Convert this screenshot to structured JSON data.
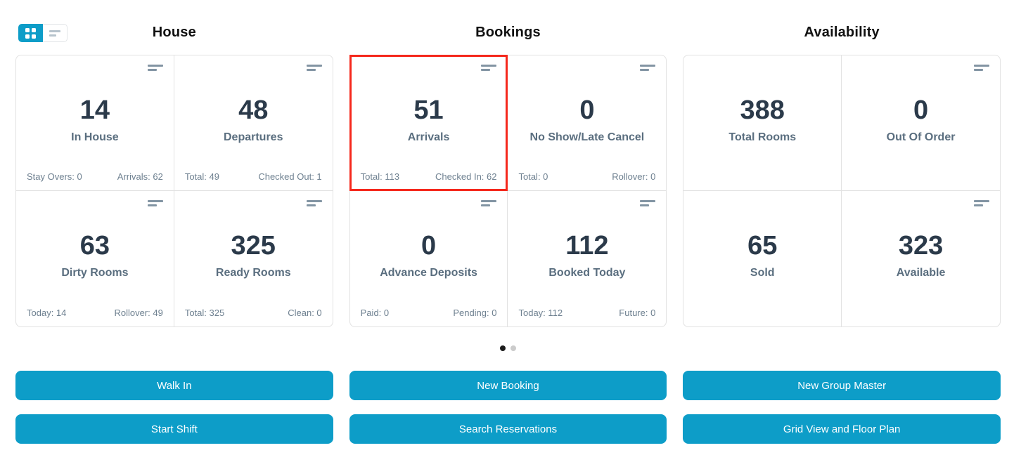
{
  "view_toggle": {
    "active_view": "grid",
    "grid_icon": "grid-view-icon",
    "list_icon": "list-view-icon"
  },
  "icons": {
    "card_menu": "align-left-lines-icon"
  },
  "colors": {
    "accent_blue": "#0d9dc8",
    "highlight_red": "#f5281c",
    "value_text": "#2b3a4a",
    "label_text": "#5a6e7f",
    "footer_text": "#6e8090",
    "card_border": "#e2e2e2",
    "dot_active": "#1b1b1b",
    "dot_inactive": "#cbcbcb"
  },
  "sections": [
    {
      "title": "House",
      "cards": [
        {
          "value": "14",
          "label": "In House",
          "foot_left": "Stay Overs: 0",
          "foot_right": "Arrivals: 62"
        },
        {
          "value": "48",
          "label": "Departures",
          "foot_left": "Total: 49",
          "foot_right": "Checked Out: 1"
        },
        {
          "value": "63",
          "label": "Dirty Rooms",
          "foot_left": "Today: 14",
          "foot_right": "Rollover: 49"
        },
        {
          "value": "325",
          "label": "Ready Rooms",
          "foot_left": "Total: 325",
          "foot_right": "Clean: 0"
        }
      ],
      "buttons": [
        "Walk In",
        "Start Shift"
      ]
    },
    {
      "title": "Bookings",
      "cards": [
        {
          "value": "51",
          "label": "Arrivals",
          "foot_left": "Total: 113",
          "foot_right": "Checked In: 62",
          "highlighted": true
        },
        {
          "value": "0",
          "label": "No Show/Late Cancel",
          "foot_left": "Total: 0",
          "foot_right": "Rollover: 0"
        },
        {
          "value": "0",
          "label": "Advance Deposits",
          "foot_left": "Paid: 0",
          "foot_right": "Pending: 0"
        },
        {
          "value": "112",
          "label": "Booked Today",
          "foot_left": "Today: 112",
          "foot_right": "Future: 0"
        }
      ],
      "buttons": [
        "New Booking",
        "Search Reservations"
      ]
    },
    {
      "title": "Availability",
      "cards": [
        {
          "value": "388",
          "label": "Total Rooms"
        },
        {
          "value": "0",
          "label": "Out Of Order"
        },
        {
          "value": "65",
          "label": "Sold"
        },
        {
          "value": "323",
          "label": "Available"
        }
      ],
      "buttons": [
        "New Group Master",
        "Grid View and Floor Plan"
      ]
    }
  ],
  "pagination": {
    "dots": 2,
    "active_dot": 1
  }
}
